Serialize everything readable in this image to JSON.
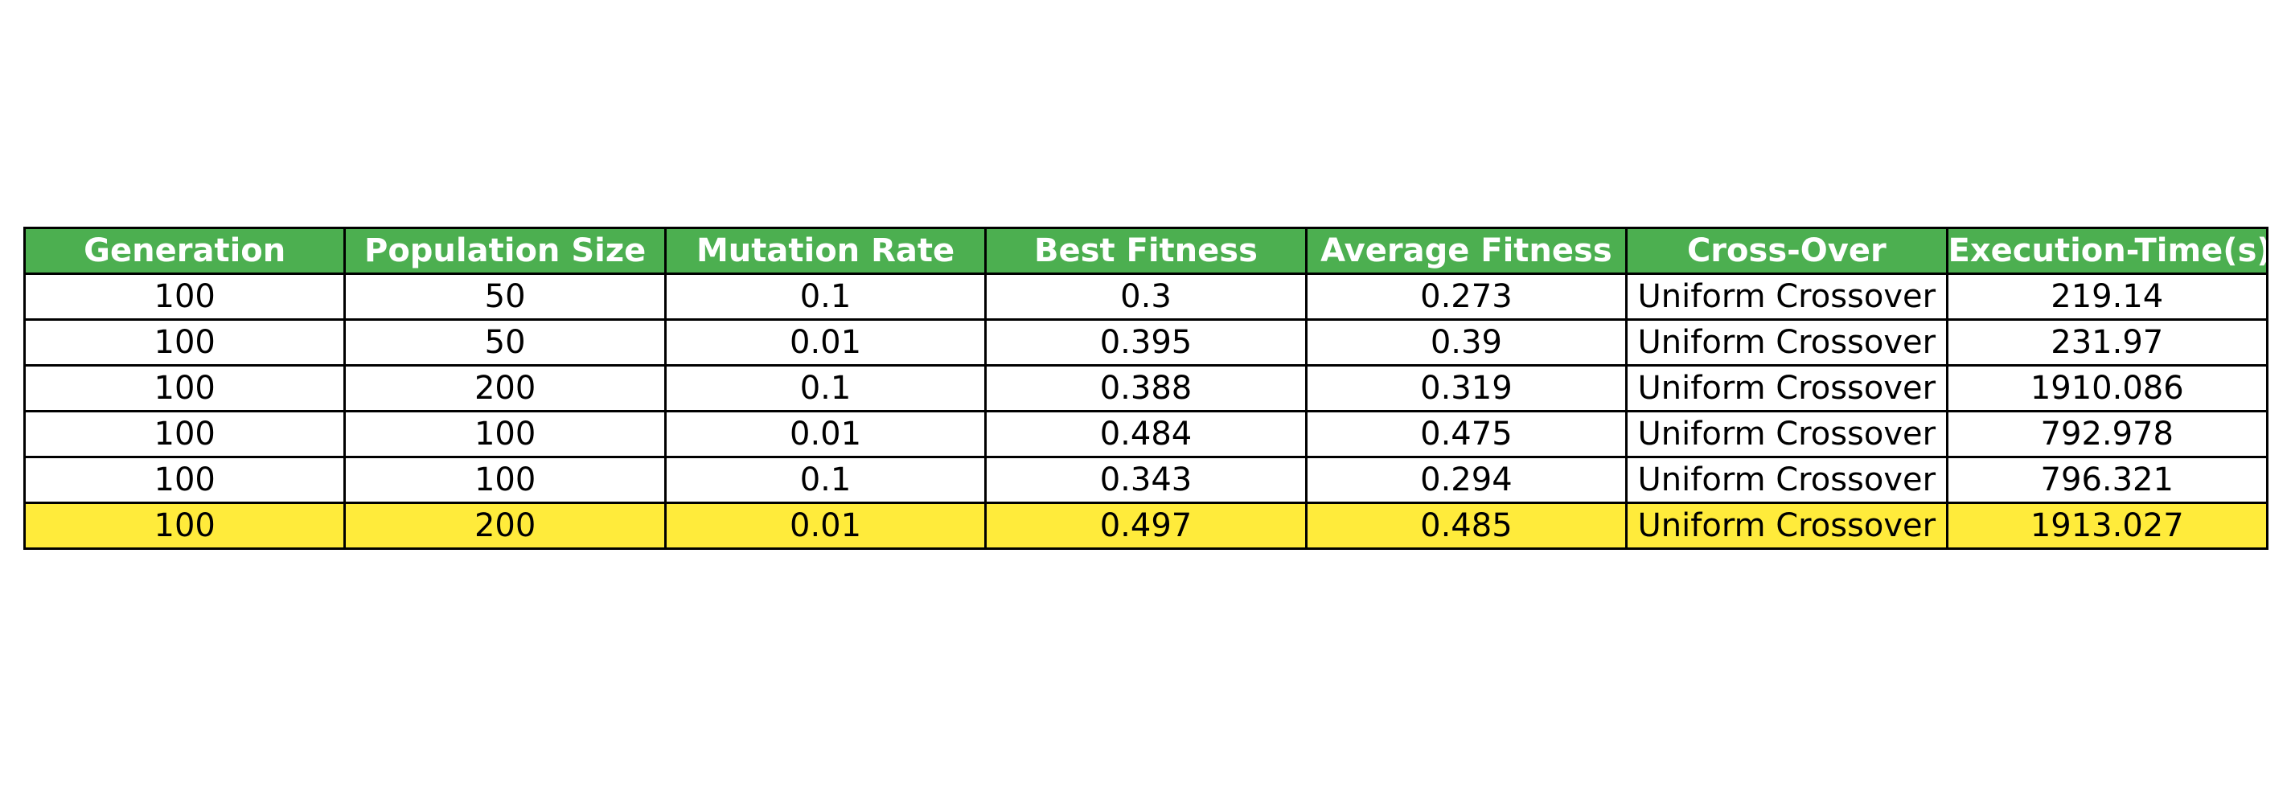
{
  "chart_data": {
    "type": "table",
    "columns": [
      "Generation",
      "Population Size",
      "Mutation Rate",
      "Best Fitness",
      "Average Fitness",
      "Cross-Over",
      "Execution-Time(s)"
    ],
    "rows": [
      [
        "100",
        "50",
        "0.1",
        "0.3",
        "0.273",
        "Uniform Crossover",
        "219.14"
      ],
      [
        "100",
        "50",
        "0.01",
        "0.395",
        "0.39",
        "Uniform Crossover",
        "231.97"
      ],
      [
        "100",
        "200",
        "0.1",
        "0.388",
        "0.319",
        "Uniform Crossover",
        "1910.086"
      ],
      [
        "100",
        "100",
        "0.01",
        "0.484",
        "0.475",
        "Uniform Crossover",
        "792.978"
      ],
      [
        "100",
        "100",
        "0.1",
        "0.343",
        "0.294",
        "Uniform Crossover",
        "796.321"
      ],
      [
        "100",
        "200",
        "0.01",
        "0.497",
        "0.485",
        "Uniform Crossover",
        "1913.027"
      ]
    ],
    "highlighted_row": 5,
    "colors": {
      "header_bg": "#4caf50",
      "header_text": "#ffffff",
      "row_bg": "#ffffff",
      "highlight_bg": "#ffeb3b",
      "border": "#000000",
      "text": "#000000"
    }
  }
}
